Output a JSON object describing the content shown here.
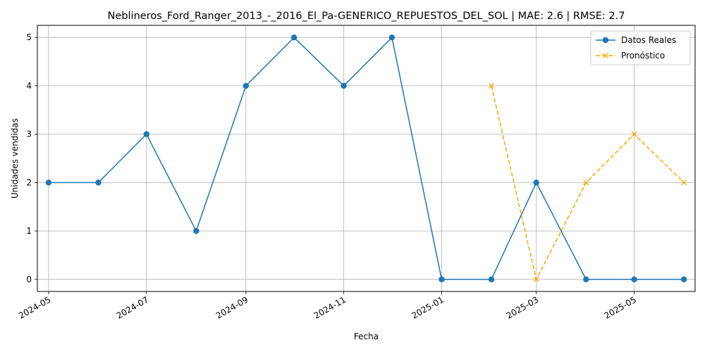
{
  "chart_data": {
    "type": "line",
    "title": "Neblineros_Ford_Ranger_2013_-_2016_El_Pa-GENERICO_REPUESTOS_DEL_SOL | MAE: 2.6 | RMSE: 2.7",
    "xlabel": "Fecha",
    "ylabel": "Unidades vendidas",
    "x_ticks": [
      "2024-05",
      "2024-07",
      "2024-09",
      "2024-11",
      "2025-01",
      "2025-03",
      "2025-05"
    ],
    "y_ticks": [
      0,
      1,
      2,
      3,
      4,
      5
    ],
    "xlim": [
      "2024-04-24",
      "2025-06-08"
    ],
    "ylim": [
      -0.25,
      5.25
    ],
    "grid": true,
    "legend_position": "top-right",
    "series": [
      {
        "name": "Datos Reales",
        "color": "#1f77b4",
        "style": "solid",
        "marker": "circle",
        "x": [
          "2024-05-01",
          "2024-06-01",
          "2024-07-01",
          "2024-08-01",
          "2024-09-01",
          "2024-10-01",
          "2024-11-01",
          "2024-12-01",
          "2025-01-01",
          "2025-02-01",
          "2025-03-01",
          "2025-04-01",
          "2025-05-01",
          "2025-06-01"
        ],
        "y": [
          2,
          2,
          3,
          1,
          4,
          5,
          4,
          5,
          0,
          0,
          2,
          0,
          0,
          0
        ]
      },
      {
        "name": "Pronóstico",
        "color": "#ffa500",
        "style": "dashed",
        "marker": "x",
        "x": [
          "2025-02-01",
          "2025-03-01",
          "2025-04-01",
          "2025-05-01",
          "2025-06-01"
        ],
        "y": [
          4,
          0,
          2,
          3,
          2
        ]
      }
    ]
  }
}
